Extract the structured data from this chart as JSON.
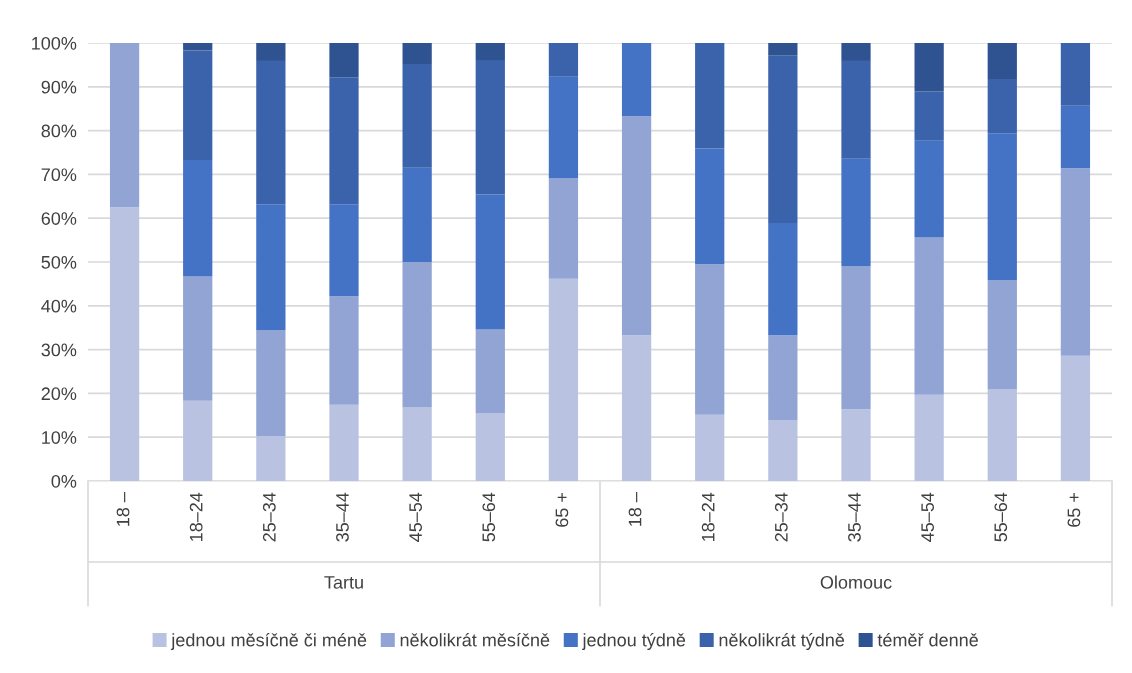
{
  "chart_data": {
    "type": "bar",
    "stacked": true,
    "categories": [
      "18 –",
      "18–24",
      "25–34",
      "35–44",
      "45–54",
      "55–64",
      "65 +",
      "18 –",
      "18–24",
      "25–34",
      "35–44",
      "45–54",
      "55–64",
      "65 +"
    ],
    "series": [
      {
        "name": "jednou měsíčně či méně",
        "color": "#b9c3e1",
        "values": [
          62.5,
          18.3,
          10.3,
          17.4,
          16.8,
          15.4,
          46.2,
          33.3,
          15.1,
          13.8,
          16.4,
          19.7,
          20.9,
          28.6
        ]
      },
      {
        "name": "několikrát měsíčně",
        "color": "#91a4d4",
        "values": [
          37.5,
          28.4,
          24.2,
          24.8,
          33.2,
          19.2,
          23.0,
          50.0,
          34.4,
          19.5,
          32.7,
          35.9,
          25.0,
          42.8
        ]
      },
      {
        "name": "jednou týdně",
        "color": "#4472c4",
        "values": [
          0,
          26.6,
          28.7,
          21.0,
          21.5,
          30.8,
          23.1,
          16.7,
          26.4,
          25.6,
          24.5,
          22.1,
          33.5,
          14.3
        ]
      },
      {
        "name": "několikrát týdně",
        "color": "#3b63ab",
        "values": [
          0,
          25.0,
          32.7,
          29.0,
          23.7,
          30.7,
          7.7,
          0,
          24.1,
          38.2,
          22.3,
          11.2,
          12.4,
          14.3
        ]
      },
      {
        "name": "téměř denně",
        "color": "#2f5391",
        "values": [
          0,
          1.7,
          4.1,
          7.8,
          4.8,
          3.9,
          0,
          0,
          0,
          2.9,
          4.1,
          11.1,
          8.2,
          0
        ]
      }
    ],
    "ylim": [
      0,
      100
    ],
    "yticks": [
      {
        "value": 0,
        "label": "0%"
      },
      {
        "value": 10,
        "label": "10%"
      },
      {
        "value": 20,
        "label": "20%"
      },
      {
        "value": 30,
        "label": "30%"
      },
      {
        "value": 40,
        "label": "40%"
      },
      {
        "value": 50,
        "label": "50%"
      },
      {
        "value": 60,
        "label": "60%"
      },
      {
        "value": 70,
        "label": "70%"
      },
      {
        "value": 80,
        "label": "80%"
      },
      {
        "value": 90,
        "label": "90%"
      },
      {
        "value": 100,
        "label": "100%"
      }
    ],
    "grid": "y",
    "legend": "bottom",
    "annotations": [
      "Tartu",
      "Olomouc"
    ]
  }
}
